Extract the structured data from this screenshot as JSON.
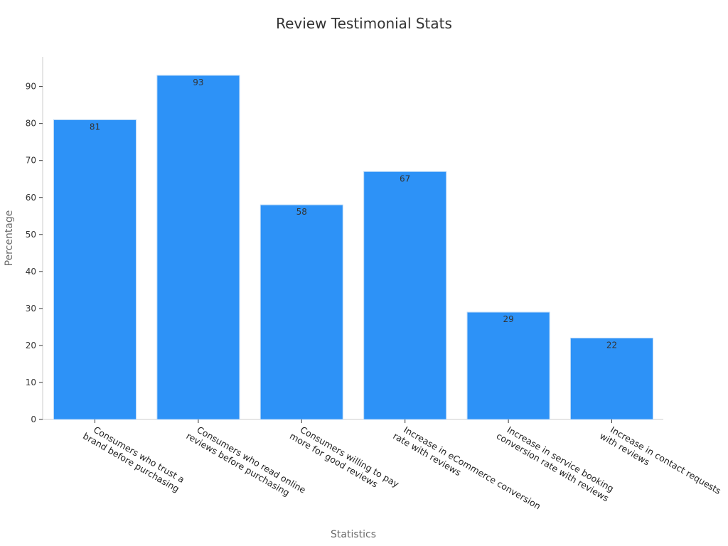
{
  "chart_data": {
    "type": "bar",
    "title": "Review Testimonial Stats",
    "xlabel": "Statistics",
    "ylabel": "Percentage",
    "categories": [
      [
        "Consumers who trust a",
        "brand before purchasing"
      ],
      [
        "Consumers who read online",
        "reviews before purchasing"
      ],
      [
        "Consumers willing to pay",
        "more for good reviews"
      ],
      [
        "Increase in eCommerce conversion",
        "rate with reviews"
      ],
      [
        "Increase in service booking",
        "conversion rate with reviews"
      ],
      [
        "Increase in contact requests",
        "with reviews"
      ]
    ],
    "values": [
      81,
      93,
      58,
      67,
      29,
      22
    ],
    "yticks": [
      0,
      10,
      20,
      30,
      40,
      50,
      60,
      70,
      80,
      90
    ],
    "ylim": [
      0,
      98
    ],
    "bar_color": "#2d92f7",
    "bar_edge_color": "#b7d7f7",
    "grid": false,
    "legend": "none",
    "data_labels": true
  }
}
